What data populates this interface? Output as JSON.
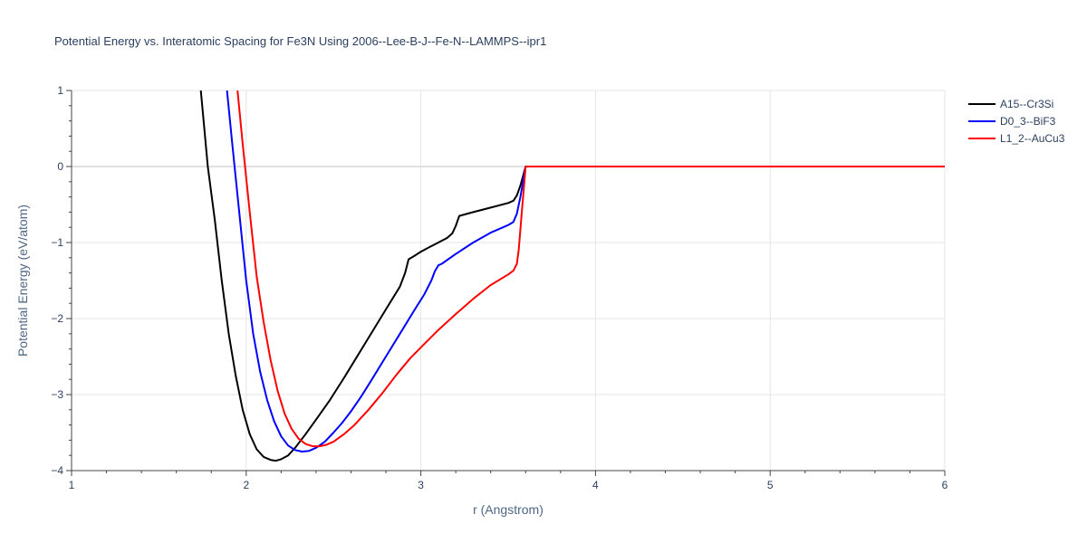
{
  "chart_data": {
    "type": "line",
    "title": "Potential Energy vs. Interatomic Spacing for Fe3N Using 2006--Lee-B-J--Fe-N--LAMMPS--ipr1",
    "xlabel": "r (Angstrom)",
    "ylabel": "Potential Energy (eV/atom)",
    "xlim": [
      1,
      6
    ],
    "ylim": [
      -4,
      1
    ],
    "xticks": [
      1,
      2,
      3,
      4,
      5,
      6
    ],
    "xtick_labels": [
      "1",
      "2",
      "3",
      "4",
      "5",
      "6"
    ],
    "yticks": [
      -4,
      -3,
      -2,
      -1,
      0,
      1
    ],
    "ytick_labels": [
      "−4",
      "−3",
      "−2",
      "−1",
      "0",
      "1"
    ],
    "grid": true,
    "legend_position": "top-right",
    "series": [
      {
        "name": "A15--Cr3Si",
        "color": "#000000",
        "x": [
          1.74,
          1.78,
          1.82,
          1.86,
          1.9,
          1.94,
          1.98,
          2.02,
          2.06,
          2.1,
          2.14,
          2.17,
          2.2,
          2.24,
          2.28,
          2.34,
          2.4,
          2.48,
          2.56,
          2.64,
          2.72,
          2.8,
          2.88,
          2.91,
          2.93,
          2.96,
          3.0,
          3.05,
          3.1,
          3.15,
          3.18,
          3.2,
          3.22,
          3.3,
          3.4,
          3.5,
          3.53,
          3.55,
          3.57,
          3.6,
          4.0,
          5.0,
          6.0
        ],
        "y": [
          1.0,
          0.0,
          -0.7,
          -1.5,
          -2.2,
          -2.75,
          -3.2,
          -3.52,
          -3.72,
          -3.82,
          -3.86,
          -3.87,
          -3.85,
          -3.8,
          -3.7,
          -3.52,
          -3.33,
          -3.07,
          -2.78,
          -2.48,
          -2.18,
          -1.88,
          -1.58,
          -1.4,
          -1.22,
          -1.18,
          -1.12,
          -1.06,
          -1.0,
          -0.94,
          -0.88,
          -0.78,
          -0.65,
          -0.6,
          -0.54,
          -0.48,
          -0.45,
          -0.38,
          -0.25,
          0.0,
          0.0,
          0.0,
          0.0
        ]
      },
      {
        "name": "D0_3--BiF3",
        "color": "#0000ff",
        "x": [
          1.89,
          1.92,
          1.96,
          2.0,
          2.04,
          2.08,
          2.12,
          2.16,
          2.2,
          2.24,
          2.28,
          2.32,
          2.36,
          2.4,
          2.45,
          2.5,
          2.55,
          2.6,
          2.66,
          2.72,
          2.8,
          2.88,
          2.96,
          3.02,
          3.06,
          3.08,
          3.1,
          3.12,
          3.2,
          3.3,
          3.4,
          3.5,
          3.53,
          3.55,
          3.57,
          3.6,
          4.0,
          5.0,
          6.0
        ],
        "y": [
          1.0,
          0.3,
          -0.6,
          -1.5,
          -2.2,
          -2.7,
          -3.07,
          -3.35,
          -3.55,
          -3.67,
          -3.73,
          -3.75,
          -3.74,
          -3.7,
          -3.62,
          -3.5,
          -3.37,
          -3.22,
          -3.02,
          -2.8,
          -2.5,
          -2.2,
          -1.9,
          -1.68,
          -1.5,
          -1.38,
          -1.3,
          -1.28,
          -1.15,
          -1.0,
          -0.87,
          -0.77,
          -0.73,
          -0.62,
          -0.4,
          0.0,
          0.0,
          0.0,
          0.0
        ]
      },
      {
        "name": "L1_2--AuCu3",
        "color": "#ff0000",
        "x": [
          1.95,
          1.98,
          2.02,
          2.06,
          2.1,
          2.14,
          2.18,
          2.22,
          2.26,
          2.3,
          2.34,
          2.38,
          2.42,
          2.46,
          2.5,
          2.56,
          2.62,
          2.7,
          2.78,
          2.86,
          2.94,
          3.0,
          3.1,
          3.2,
          3.3,
          3.4,
          3.5,
          3.53,
          3.55,
          3.56,
          3.58,
          3.6,
          4.0,
          5.0,
          6.0
        ],
        "y": [
          1.0,
          0.3,
          -0.6,
          -1.45,
          -2.05,
          -2.55,
          -2.95,
          -3.25,
          -3.45,
          -3.58,
          -3.65,
          -3.68,
          -3.68,
          -3.66,
          -3.62,
          -3.52,
          -3.4,
          -3.2,
          -2.98,
          -2.74,
          -2.52,
          -2.38,
          -2.15,
          -1.94,
          -1.74,
          -1.56,
          -1.42,
          -1.37,
          -1.28,
          -1.1,
          -0.55,
          0.0,
          0.0,
          0.0,
          0.0
        ]
      }
    ]
  }
}
